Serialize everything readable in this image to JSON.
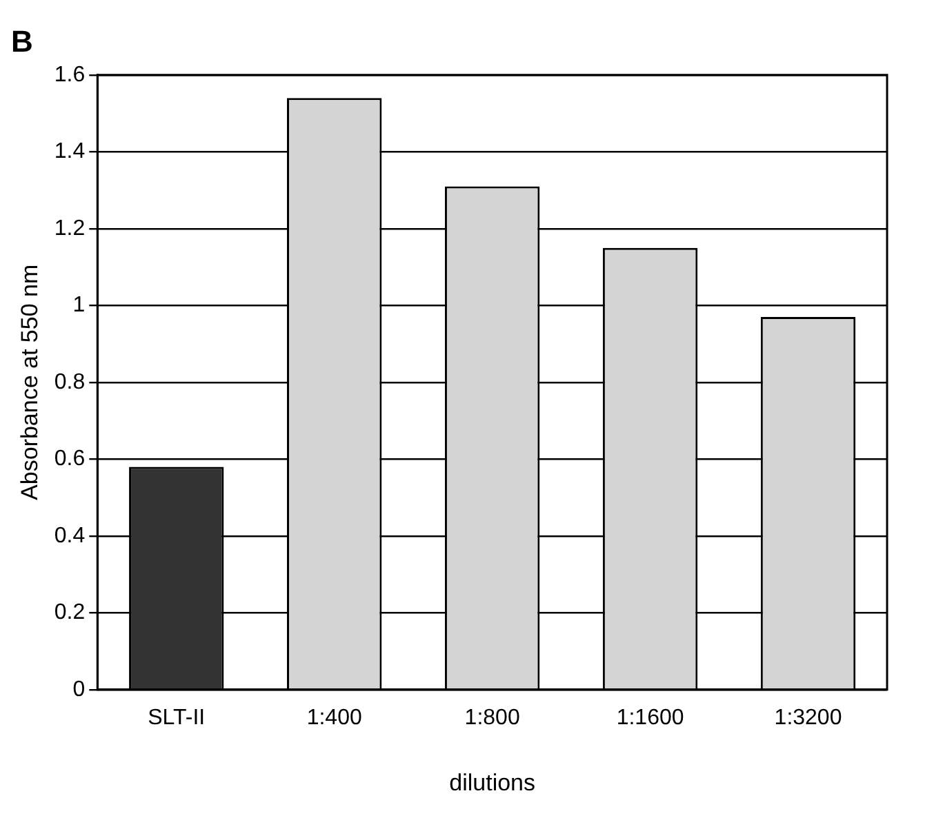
{
  "chart_data": {
    "type": "bar",
    "title": "B",
    "xlabel": "dilutions",
    "ylabel": "Absorbance at 550 nm",
    "categories": [
      "SLT-II",
      "1:400",
      "1:800",
      "1:1600",
      "1:3200"
    ],
    "values": [
      0.58,
      1.54,
      1.31,
      1.15,
      0.97
    ],
    "colors": [
      "#333333",
      "#d4d4d4",
      "#d4d4d4",
      "#d4d4d4",
      "#d4d4d4"
    ],
    "ylim": [
      0,
      1.6
    ],
    "yticks": [
      0,
      0.2,
      0.4,
      0.6,
      0.8,
      1,
      1.2,
      1.4,
      1.6
    ],
    "grid": "y"
  }
}
